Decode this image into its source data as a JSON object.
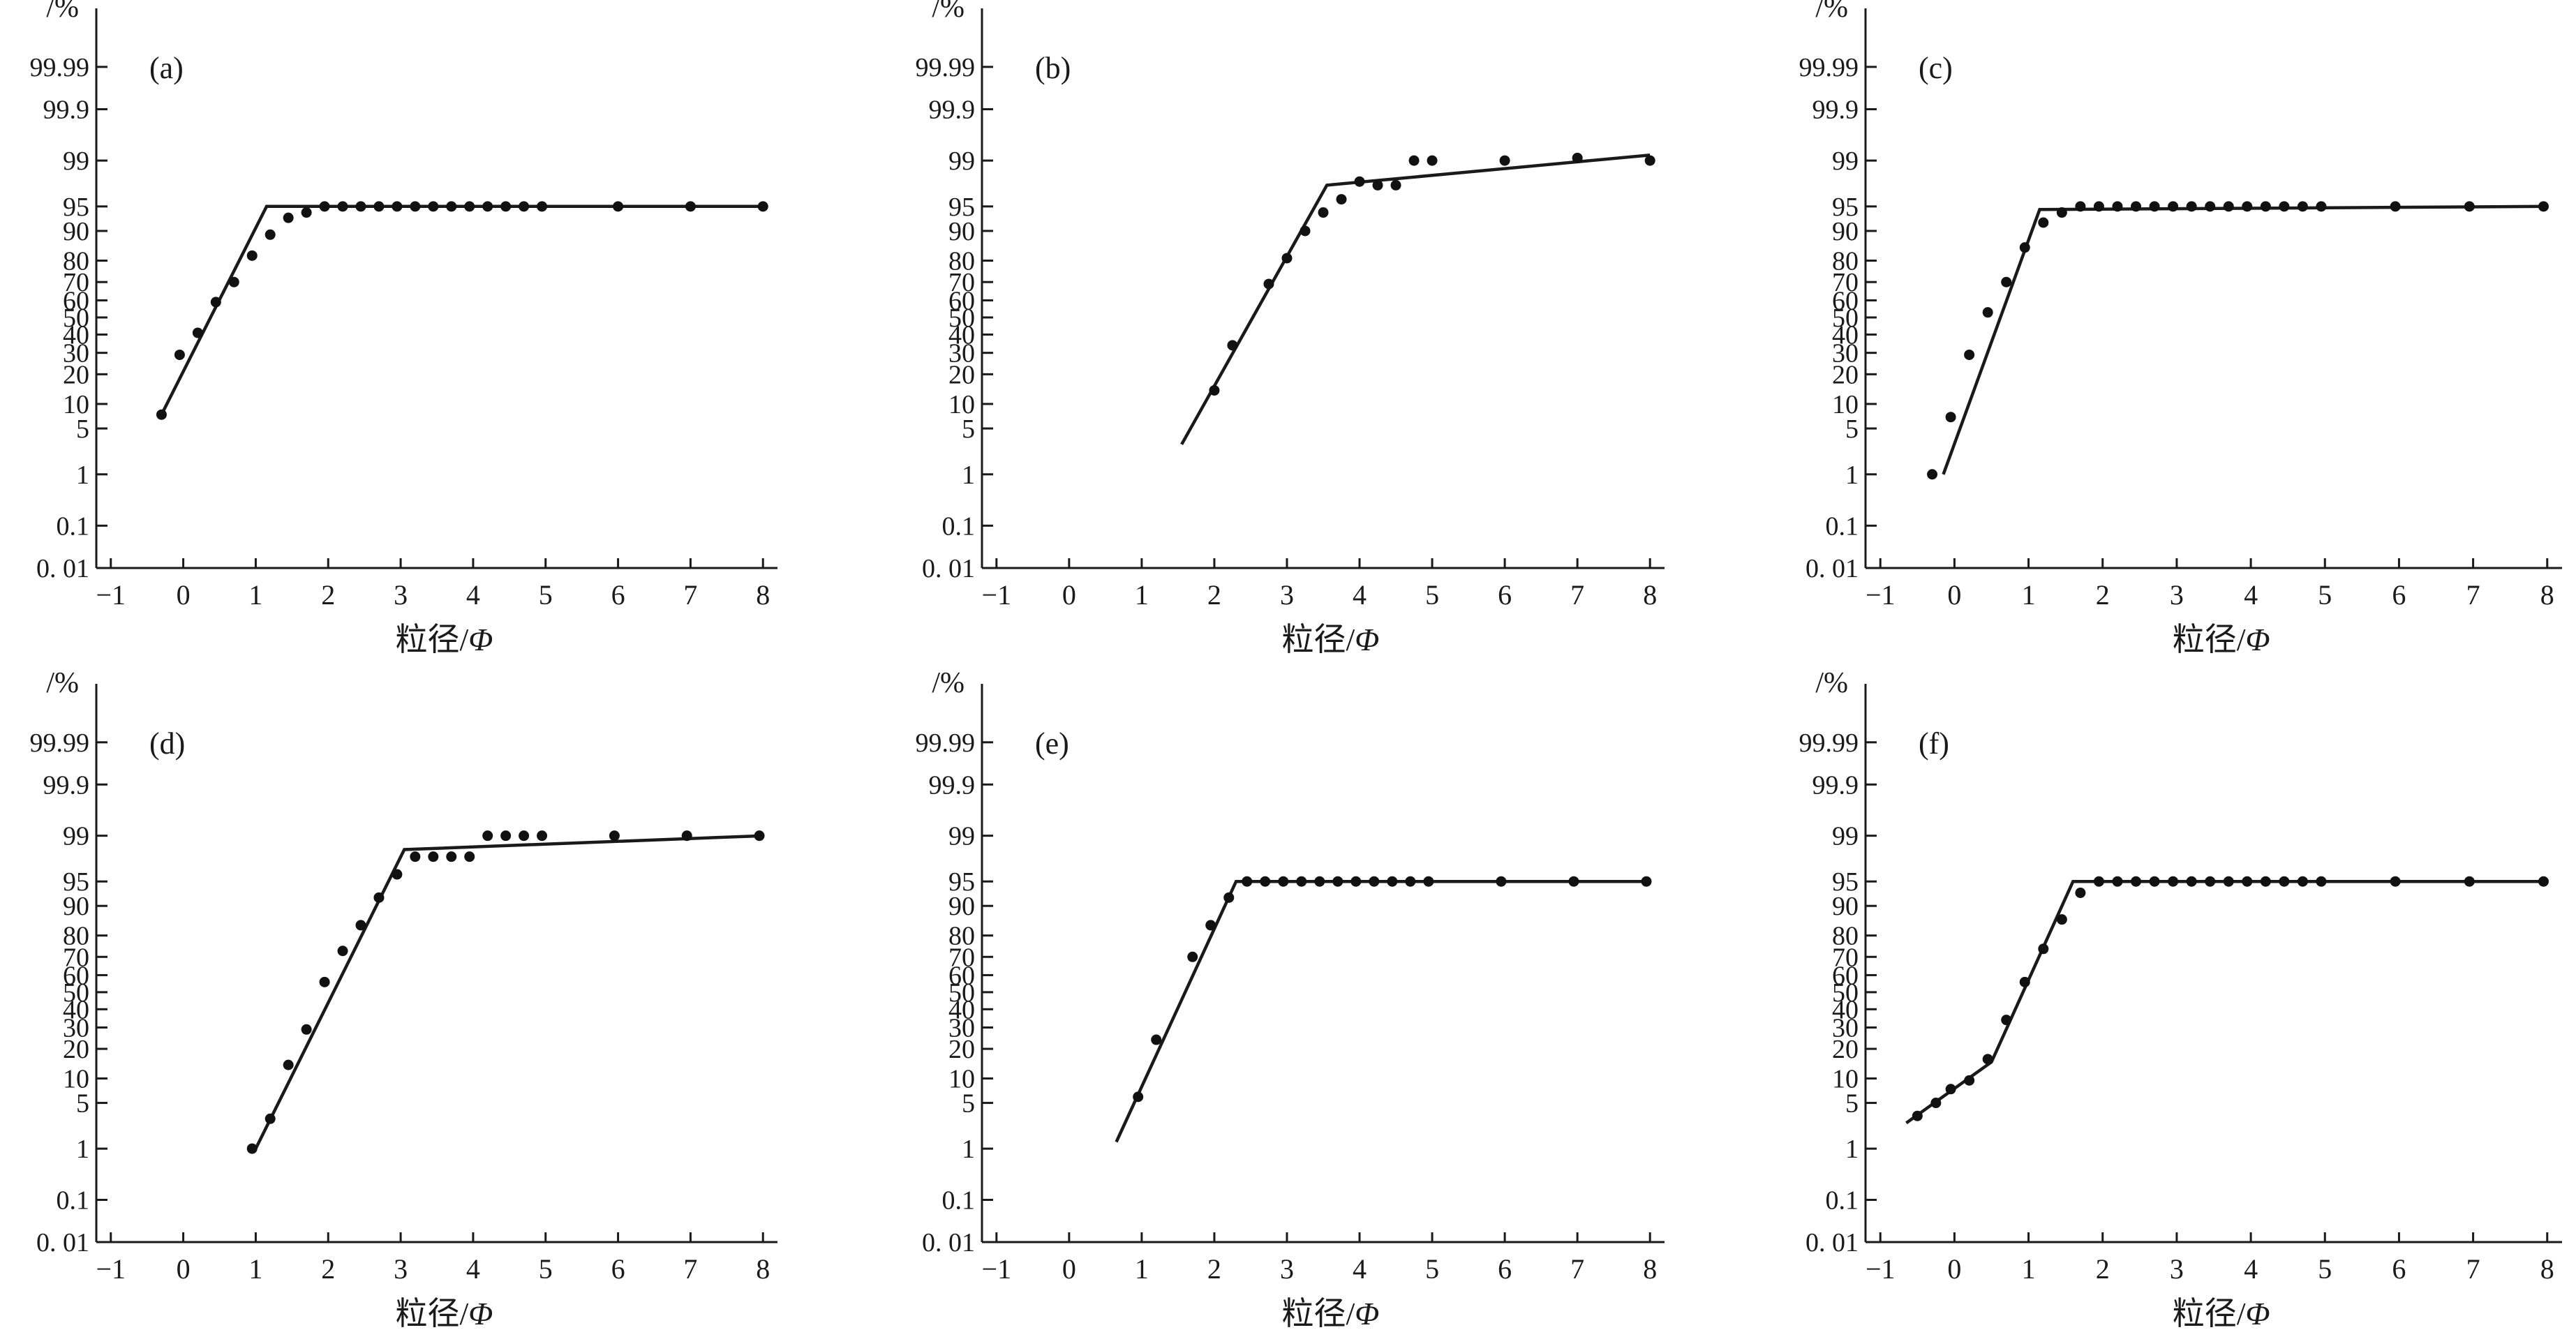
{
  "chart_data": [
    {
      "type": "scatter",
      "panel_label": "(a)",
      "ylabel": "/%",
      "xlabel": "粒径/",
      "xlabel_symbol": "Φ",
      "x_ticks": [
        "−1",
        "0",
        "1",
        "2",
        "3",
        "4",
        "5",
        "6",
        "7",
        "8"
      ],
      "y_ticks": [
        "0. 01",
        "0.1",
        "1",
        "5",
        "10",
        "20",
        "30",
        "40",
        "50",
        "60",
        "70",
        "80",
        "90",
        "95",
        "99",
        "99.9",
        "99.99"
      ],
      "xlim": [
        -1.2,
        8.2
      ],
      "y_scale": "probability",
      "points": [
        [
          -0.3,
          7.5
        ],
        [
          -0.05,
          29
        ],
        [
          0.2,
          41
        ],
        [
          0.45,
          59
        ],
        [
          0.7,
          70
        ],
        [
          0.95,
          82
        ],
        [
          1.2,
          89
        ],
        [
          1.45,
          93
        ],
        [
          1.7,
          94
        ],
        [
          1.95,
          95
        ],
        [
          2.2,
          95
        ],
        [
          2.45,
          95
        ],
        [
          2.7,
          95
        ],
        [
          2.95,
          95
        ],
        [
          3.2,
          95
        ],
        [
          3.45,
          95
        ],
        [
          3.7,
          95
        ],
        [
          3.95,
          95
        ],
        [
          4.2,
          95
        ],
        [
          4.45,
          95
        ],
        [
          4.7,
          95
        ],
        [
          4.95,
          95
        ],
        [
          6,
          95
        ],
        [
          7,
          95
        ],
        [
          8,
          95
        ]
      ],
      "fit_line": [
        [
          -0.3,
          7.5
        ],
        [
          1.15,
          95
        ],
        [
          8,
          95
        ]
      ]
    },
    {
      "type": "scatter",
      "panel_label": "(b)",
      "ylabel": "/%",
      "xlabel": "粒径/",
      "xlabel_symbol": "Φ",
      "x_ticks": [
        "−1",
        "0",
        "1",
        "2",
        "3",
        "4",
        "5",
        "6",
        "7",
        "8"
      ],
      "y_ticks": [
        "0. 01",
        "0.1",
        "1",
        "5",
        "10",
        "20",
        "30",
        "40",
        "50",
        "60",
        "70",
        "80",
        "90",
        "95",
        "99",
        "99.9",
        "99.99"
      ],
      "xlim": [
        -1.2,
        8.2
      ],
      "y_scale": "probability",
      "points": [
        [
          2,
          14
        ],
        [
          2.25,
          34
        ],
        [
          2.75,
          69
        ],
        [
          3,
          81
        ],
        [
          3.25,
          90
        ],
        [
          3.5,
          94
        ],
        [
          3.75,
          96
        ],
        [
          4,
          97.8
        ],
        [
          4.25,
          97.5
        ],
        [
          4.5,
          97.5
        ],
        [
          4.75,
          99
        ],
        [
          5,
          99
        ],
        [
          6,
          99
        ],
        [
          7,
          99.1
        ],
        [
          8,
          99
        ]
      ],
      "fit_line": [
        [
          1.55,
          3
        ],
        [
          3.55,
          97.5
        ],
        [
          8,
          99.2
        ]
      ]
    },
    {
      "type": "scatter",
      "panel_label": "(c)",
      "ylabel": "/%",
      "xlabel": "粒径/",
      "xlabel_symbol": "Φ",
      "x_ticks": [
        "−1",
        "0",
        "1",
        "2",
        "3",
        "4",
        "5",
        "6",
        "7",
        "8"
      ],
      "y_ticks": [
        "0. 01",
        "0.1",
        "1",
        "5",
        "10",
        "20",
        "30",
        "40",
        "50",
        "60",
        "70",
        "80",
        "90",
        "95",
        "99",
        "99.9",
        "99.99"
      ],
      "xlim": [
        -1.2,
        8.2
      ],
      "y_scale": "probability",
      "points": [
        [
          -0.3,
          1
        ],
        [
          -0.05,
          7
        ],
        [
          0.2,
          29
        ],
        [
          0.45,
          53
        ],
        [
          0.7,
          70
        ],
        [
          0.95,
          85
        ],
        [
          1.2,
          92
        ],
        [
          1.45,
          94
        ],
        [
          1.7,
          95
        ],
        [
          1.95,
          95
        ],
        [
          2.2,
          95
        ],
        [
          2.45,
          95
        ],
        [
          2.7,
          95
        ],
        [
          2.95,
          95
        ],
        [
          3.2,
          95
        ],
        [
          3.45,
          95
        ],
        [
          3.7,
          95
        ],
        [
          3.95,
          95
        ],
        [
          4.2,
          95
        ],
        [
          4.45,
          95
        ],
        [
          4.7,
          95
        ],
        [
          4.95,
          95
        ],
        [
          5.95,
          95
        ],
        [
          6.95,
          95
        ],
        [
          7.95,
          95
        ]
      ],
      "fit_line": [
        [
          -0.15,
          1
        ],
        [
          1.15,
          94.5
        ],
        [
          8,
          95
        ]
      ]
    },
    {
      "type": "scatter",
      "panel_label": "(d)",
      "ylabel": "/%",
      "xlabel": "粒径/",
      "xlabel_symbol": "Φ",
      "x_ticks": [
        "−1",
        "0",
        "1",
        "2",
        "3",
        "4",
        "5",
        "6",
        "7",
        "8"
      ],
      "y_ticks": [
        "0. 01",
        "0.1",
        "1",
        "5",
        "10",
        "20",
        "30",
        "40",
        "50",
        "60",
        "70",
        "80",
        "90",
        "95",
        "99",
        "99.9",
        "99.99"
      ],
      "xlim": [
        -1.2,
        8.2
      ],
      "y_scale": "probability",
      "points": [
        [
          0.95,
          1
        ],
        [
          1.2,
          3
        ],
        [
          1.45,
          14
        ],
        [
          1.7,
          29
        ],
        [
          1.95,
          56
        ],
        [
          2.2,
          73
        ],
        [
          2.45,
          84
        ],
        [
          2.7,
          92
        ],
        [
          2.95,
          96
        ],
        [
          3.2,
          97.8
        ],
        [
          3.45,
          97.8
        ],
        [
          3.7,
          97.8
        ],
        [
          3.95,
          97.8
        ],
        [
          4.2,
          99
        ],
        [
          4.45,
          99
        ],
        [
          4.7,
          99
        ],
        [
          4.95,
          99
        ],
        [
          5.95,
          99
        ],
        [
          6.95,
          99
        ],
        [
          7.95,
          99
        ]
      ],
      "fit_line": [
        [
          1,
          1
        ],
        [
          3.05,
          98.3
        ],
        [
          8,
          99
        ]
      ]
    },
    {
      "type": "scatter",
      "panel_label": "(e)",
      "ylabel": "/%",
      "xlabel": "粒径/",
      "xlabel_symbol": "Φ",
      "x_ticks": [
        "−1",
        "0",
        "1",
        "2",
        "3",
        "4",
        "5",
        "6",
        "7",
        "8"
      ],
      "y_ticks": [
        "0. 01",
        "0.1",
        "1",
        "5",
        "10",
        "20",
        "30",
        "40",
        "50",
        "60",
        "70",
        "80",
        "90",
        "95",
        "99",
        "99.9",
        "99.99"
      ],
      "xlim": [
        -1.2,
        8.2
      ],
      "y_scale": "probability",
      "points": [
        [
          0.95,
          6
        ],
        [
          1.2,
          24
        ],
        [
          1.7,
          70
        ],
        [
          1.95,
          84
        ],
        [
          2.2,
          92
        ],
        [
          2.45,
          95
        ],
        [
          2.7,
          95
        ],
        [
          2.95,
          95
        ],
        [
          3.2,
          95
        ],
        [
          3.45,
          95
        ],
        [
          3.7,
          95
        ],
        [
          3.95,
          95
        ],
        [
          4.2,
          95
        ],
        [
          4.45,
          95
        ],
        [
          4.7,
          95
        ],
        [
          4.95,
          95
        ],
        [
          5.95,
          95
        ],
        [
          6.95,
          95
        ],
        [
          7.95,
          95
        ]
      ],
      "fit_line": [
        [
          0.65,
          1.3
        ],
        [
          2.3,
          95
        ],
        [
          8,
          95
        ]
      ]
    },
    {
      "type": "scatter",
      "panel_label": "(f)",
      "ylabel": "/%",
      "xlabel": "粒径/",
      "xlabel_symbol": "Φ",
      "x_ticks": [
        "−1",
        "0",
        "1",
        "2",
        "3",
        "4",
        "5",
        "6",
        "7",
        "8"
      ],
      "y_ticks": [
        "0. 01",
        "0.1",
        "1",
        "5",
        "10",
        "20",
        "30",
        "40",
        "50",
        "60",
        "70",
        "80",
        "90",
        "95",
        "99",
        "99.9",
        "99.99"
      ],
      "xlim": [
        -1.2,
        8.2
      ],
      "y_scale": "probability",
      "points": [
        [
          -0.5,
          3.3
        ],
        [
          -0.25,
          5
        ],
        [
          -0.05,
          7.5
        ],
        [
          0.2,
          9.5
        ],
        [
          0.45,
          16
        ],
        [
          0.7,
          34
        ],
        [
          0.95,
          56
        ],
        [
          1.2,
          74
        ],
        [
          1.45,
          86
        ],
        [
          1.7,
          93
        ],
        [
          1.95,
          95
        ],
        [
          2.2,
          95
        ],
        [
          2.45,
          95
        ],
        [
          2.7,
          95
        ],
        [
          2.95,
          95
        ],
        [
          3.2,
          95
        ],
        [
          3.45,
          95
        ],
        [
          3.7,
          95
        ],
        [
          3.95,
          95
        ],
        [
          4.2,
          95
        ],
        [
          4.45,
          95
        ],
        [
          4.7,
          95
        ],
        [
          4.95,
          95
        ],
        [
          5.95,
          95
        ],
        [
          6.95,
          95
        ],
        [
          7.95,
          95
        ]
      ],
      "fit_line": [
        [
          -0.65,
          2.6
        ],
        [
          0.5,
          15
        ],
        [
          1.6,
          95
        ],
        [
          8,
          95
        ]
      ]
    }
  ]
}
